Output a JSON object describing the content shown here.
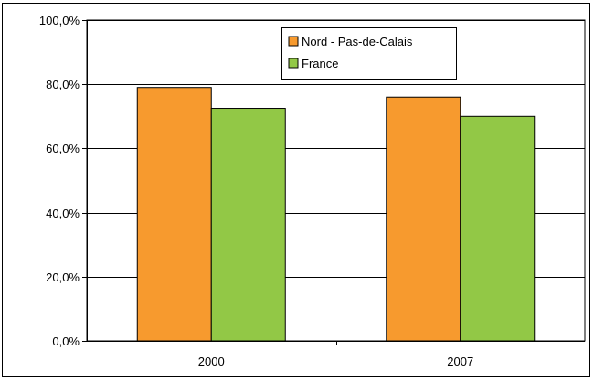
{
  "chart_data": {
    "type": "bar",
    "categories": [
      "2000",
      "2007"
    ],
    "series": [
      {
        "name": "Nord - Pas-de-Calais",
        "values": [
          79.0,
          76.0
        ],
        "color": "#F79A2E"
      },
      {
        "name": "France",
        "values": [
          72.5,
          70.0
        ],
        "color": "#92C846"
      }
    ],
    "ylim": [
      0,
      100
    ],
    "yticks": [
      {
        "value": 0,
        "label": "0,0%"
      },
      {
        "value": 20,
        "label": "20,0%"
      },
      {
        "value": 40,
        "label": "40,0%"
      },
      {
        "value": 60,
        "label": "60,0%"
      },
      {
        "value": 80,
        "label": "80,0%"
      },
      {
        "value": 100,
        "label": "100,0%"
      }
    ],
    "grid": true,
    "legend_position": "top-right",
    "title": "",
    "xlabel": "",
    "ylabel": ""
  }
}
